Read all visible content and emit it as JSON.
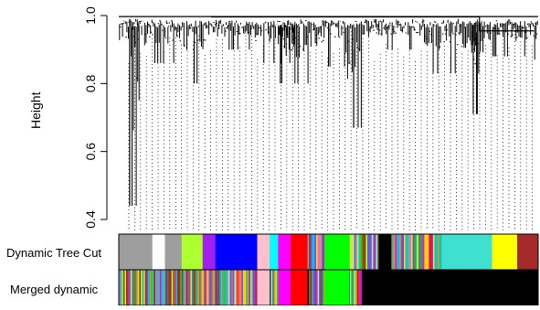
{
  "ylabel": "Height",
  "y_ticks": [
    "0.4",
    "0.6",
    "0.8",
    "1.0"
  ],
  "chart_data": {
    "type": "dendrogram",
    "ylabel": "Height",
    "ylim": [
      0.4,
      1.0
    ],
    "color_rows": [
      "Dynamic Tree Cut",
      "Merged dynamic"
    ],
    "dynamic_modules": [
      {
        "color": "#9e9e9e",
        "from": 0.0,
        "to": 0.08
      },
      {
        "color": "#ffffff",
        "from": 0.08,
        "to": 0.11
      },
      {
        "color": "#9e9e9e",
        "from": 0.11,
        "to": 0.15
      },
      {
        "color": "#adff2f",
        "from": 0.15,
        "to": 0.2
      },
      {
        "color": "#a020f0",
        "from": 0.2,
        "to": 0.23
      },
      {
        "color": "#0000ff",
        "from": 0.23,
        "to": 0.33
      },
      {
        "color": "#ffc0cb",
        "from": 0.33,
        "to": 0.36
      },
      {
        "color": "#00ffff",
        "from": 0.36,
        "to": 0.38
      },
      {
        "color": "#ff00ff",
        "from": 0.38,
        "to": 0.41
      },
      {
        "color": "#ff0000",
        "from": 0.41,
        "to": 0.45
      },
      {
        "color": "#00ff00",
        "from": 0.49,
        "to": 0.55
      },
      {
        "color": "#000000",
        "from": 0.62,
        "to": 0.65
      },
      {
        "color": "#40e0d0",
        "from": 0.77,
        "to": 0.89
      },
      {
        "color": "#ffff00",
        "from": 0.89,
        "to": 0.95
      },
      {
        "color": "#a52a2a",
        "from": 0.95,
        "to": 1.0
      }
    ],
    "merged_modules": [
      {
        "color": "#ffc0cb",
        "from": 0.33,
        "to": 0.36
      },
      {
        "color": "#ff00ff",
        "from": 0.38,
        "to": 0.41
      },
      {
        "color": "#ff0000",
        "from": 0.41,
        "to": 0.45
      },
      {
        "color": "#00ff00",
        "from": 0.49,
        "to": 0.55
      },
      {
        "color": "#000000",
        "from": 0.58,
        "to": 1.0
      }
    ]
  }
}
